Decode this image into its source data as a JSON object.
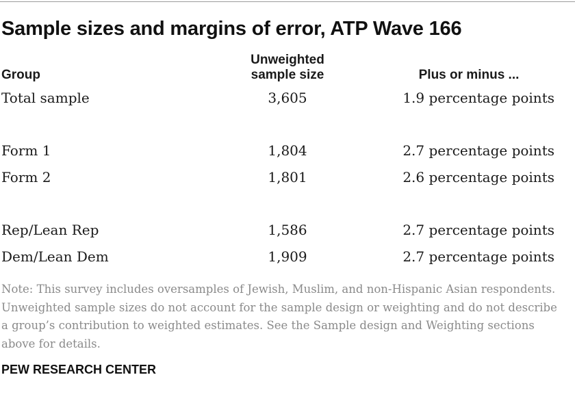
{
  "title": "Sample sizes and margins of error, ATP Wave 166",
  "headers": {
    "group": "Group",
    "sample_size_line1": "Unweighted",
    "sample_size_line2": "sample size",
    "moe": "Plus or minus ..."
  },
  "rows": [
    {
      "group": "Total sample",
      "size": "3,605",
      "moe": "1.9 percentage points"
    },
    {
      "group": "Form 1",
      "size": "1,804",
      "moe": "2.7 percentage points"
    },
    {
      "group": "Form 2",
      "size": "1,801",
      "moe": "2.6 percentage points"
    },
    {
      "group": "Rep/Lean Rep",
      "size": "1,586",
      "moe": "2.7 percentage points"
    },
    {
      "group": "Dem/Lean Dem",
      "size": "1,909",
      "moe": "2.7 percentage points"
    }
  ],
  "note": "Note: This survey includes oversamples of Jewish, Muslim, and non-Hispanic Asian respondents. Unweighted sample sizes do not account for the sample design or weighting and do not describe a group’s contribution to weighted estimates. See the Sample design and Weighting sections above for details.",
  "source": "PEW RESEARCH CENTER"
}
